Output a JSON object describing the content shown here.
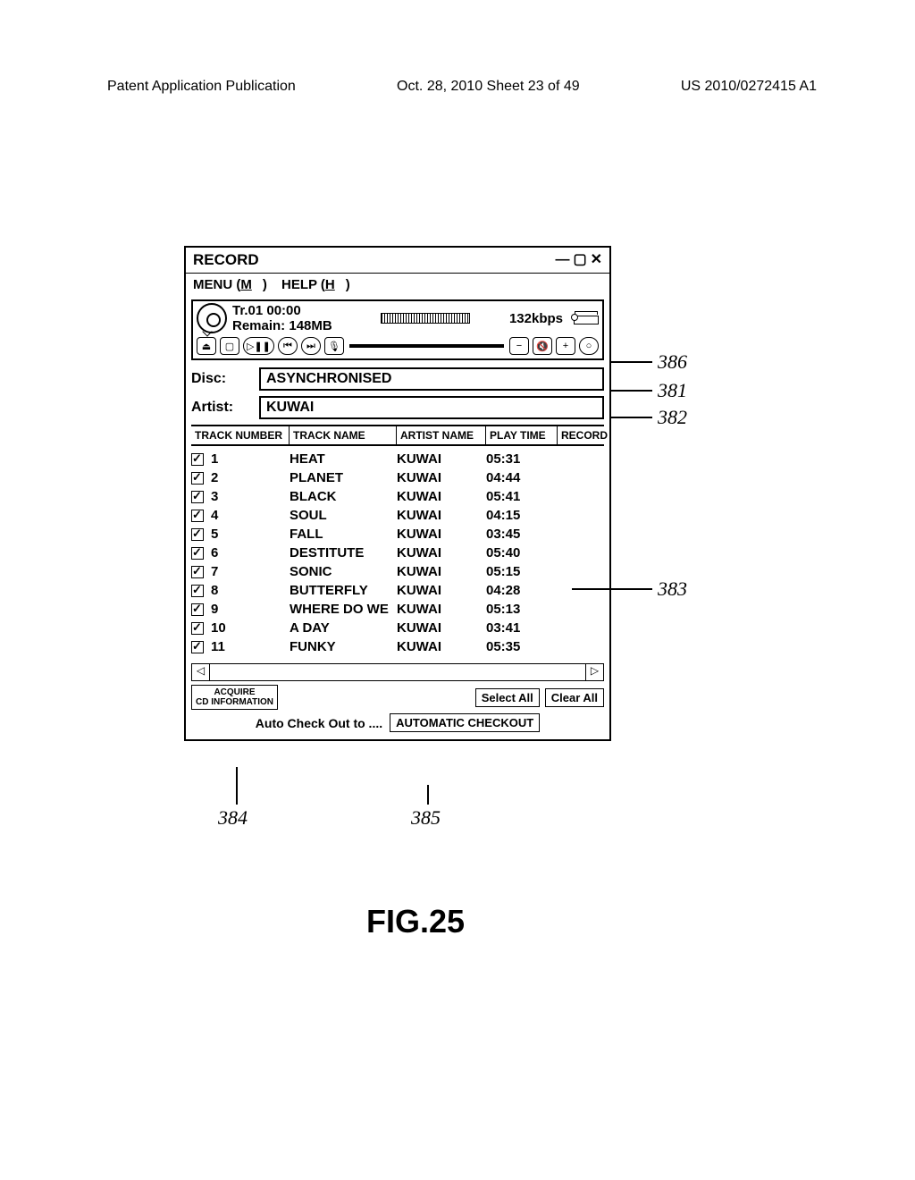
{
  "page_header": {
    "left": "Patent Application Publication",
    "center": "Oct. 28, 2010  Sheet 23 of 49",
    "right": "US 2010/0272415 A1"
  },
  "window": {
    "title": "RECORD",
    "menu": {
      "menu": "MENU (M)",
      "help": "HELP (H)"
    },
    "player": {
      "track_time": "Tr.01  00:00",
      "remain": "Remain:  148MB",
      "bitrate": "132kbps"
    },
    "disc_label": "Disc:",
    "disc_value": "ASYNCHRONISED",
    "artist_label": "Artist:",
    "artist_value": "KUWAI",
    "columns": {
      "c1": "TRACK NUMBER",
      "c2": "TRACK NAME",
      "c3": "ARTIST NAME",
      "c4": "PLAY TIME",
      "c5": "RECORD"
    },
    "tracks": [
      {
        "num": "1",
        "name": "HEAT",
        "artist": "KUWAI",
        "time": "05:31"
      },
      {
        "num": "2",
        "name": "PLANET",
        "artist": "KUWAI",
        "time": "04:44"
      },
      {
        "num": "3",
        "name": "BLACK",
        "artist": "KUWAI",
        "time": "05:41"
      },
      {
        "num": "4",
        "name": "SOUL",
        "artist": "KUWAI",
        "time": "04:15"
      },
      {
        "num": "5",
        "name": "FALL",
        "artist": "KUWAI",
        "time": "03:45"
      },
      {
        "num": "6",
        "name": "DESTITUTE",
        "artist": "KUWAI",
        "time": "05:40"
      },
      {
        "num": "7",
        "name": "SONIC",
        "artist": "KUWAI",
        "time": "05:15"
      },
      {
        "num": "8",
        "name": "BUTTERFLY",
        "artist": "KUWAI",
        "time": "04:28"
      },
      {
        "num": "9",
        "name": "WHERE DO WE",
        "artist": "KUWAI",
        "time": "05:13"
      },
      {
        "num": "10",
        "name": "A DAY",
        "artist": "KUWAI",
        "time": "03:41"
      },
      {
        "num": "11",
        "name": "FUNKY",
        "artist": "KUWAI",
        "time": "05:35"
      }
    ],
    "acquire": "ACQUIRE\nCD INFORMATION",
    "select_all": "Select All",
    "clear_all": "Clear All",
    "auto_label": "Auto Check Out to ....",
    "auto_btn": "AUTOMATIC CHECKOUT"
  },
  "callouts": {
    "c386": "386",
    "c381": "381",
    "c382": "382",
    "c383": "383",
    "c384": "384",
    "c385": "385"
  },
  "figure": "FIG.25"
}
